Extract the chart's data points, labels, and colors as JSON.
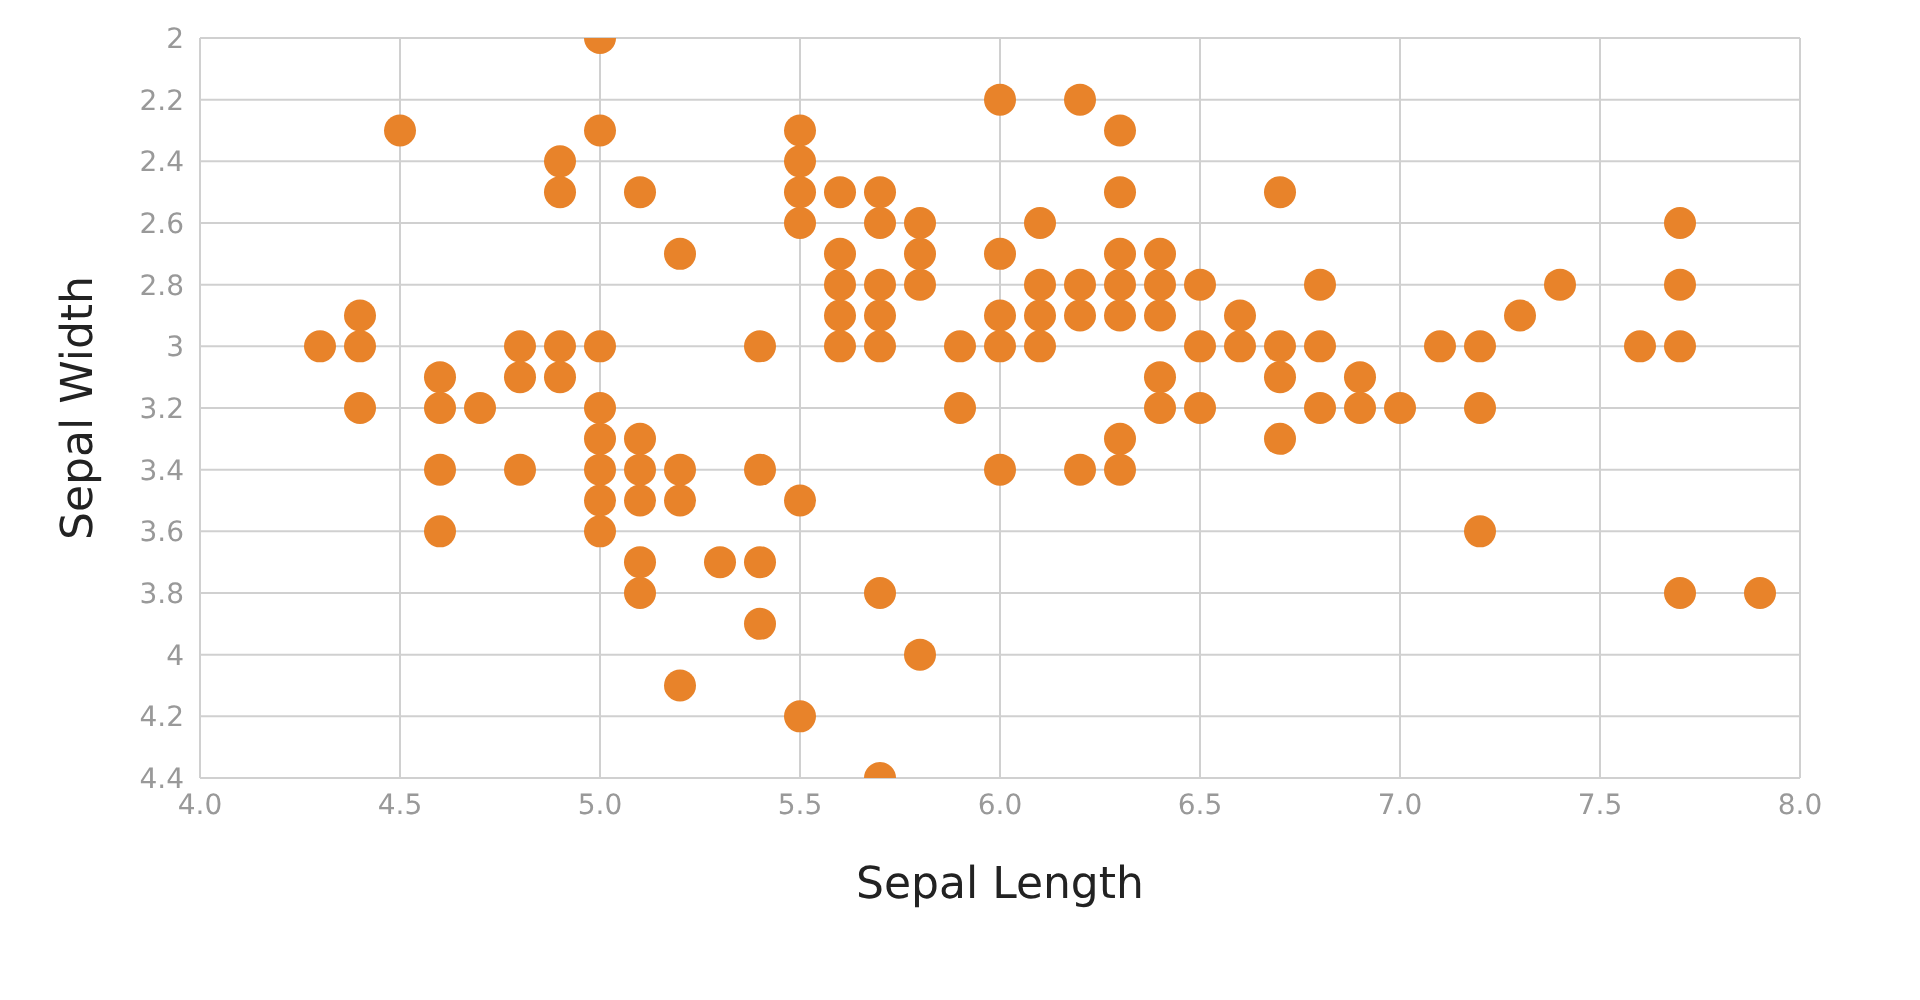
{
  "chart_data": {
    "type": "scatter",
    "xlabel": "Sepal Length",
    "ylabel": "Sepal Width",
    "xlim": [
      4,
      8
    ],
    "xticks": [
      {
        "value": 4,
        "label": "4.0"
      },
      {
        "value": 4.5,
        "label": "4.5"
      },
      {
        "value": 5,
        "label": "5.0"
      },
      {
        "value": 5.5,
        "label": "5.5"
      },
      {
        "value": 6,
        "label": "6.0"
      },
      {
        "value": 6.5,
        "label": "6.5"
      },
      {
        "value": 7,
        "label": "7.0"
      },
      {
        "value": 7.5,
        "label": "7.5"
      },
      {
        "value": 8,
        "label": "8.0"
      }
    ],
    "ylim": [
      4.4,
      2
    ],
    "yticks": [
      2,
      2.2,
      2.4,
      2.6,
      2.8,
      3,
      3.2,
      3.4,
      3.6,
      3.8,
      4,
      4.2,
      4.4
    ],
    "grid": true,
    "marker": "circle",
    "legend": false,
    "series": [
      {
        "color": "#e8832a",
        "x": [
          4.3,
          4.4,
          4.4,
          4.4,
          4.5,
          4.6,
          4.6,
          4.6,
          4.6,
          4.7,
          4.8,
          4.8,
          4.8,
          4.9,
          4.9,
          4.9,
          4.9,
          5.0,
          5.0,
          5.0,
          5.0,
          5.0,
          5.0,
          5.0,
          5.0,
          5.1,
          5.1,
          5.1,
          5.1,
          5.1,
          5.1,
          5.2,
          5.2,
          5.2,
          5.2,
          5.3,
          5.4,
          5.4,
          5.4,
          5.4,
          5.5,
          5.5,
          5.5,
          5.5,
          5.5,
          5.5,
          5.6,
          5.6,
          5.6,
          5.6,
          5.6,
          5.7,
          5.7,
          5.7,
          5.7,
          5.7,
          5.7,
          5.7,
          5.8,
          5.8,
          5.8,
          5.8,
          5.9,
          5.9,
          6.0,
          6.0,
          6.0,
          6.0,
          6.0,
          6.1,
          6.1,
          6.1,
          6.1,
          6.2,
          6.2,
          6.2,
          6.2,
          6.3,
          6.3,
          6.3,
          6.3,
          6.3,
          6.3,
          6.3,
          6.4,
          6.4,
          6.4,
          6.4,
          6.4,
          6.5,
          6.5,
          6.5,
          6.6,
          6.6,
          6.7,
          6.7,
          6.7,
          6.7,
          6.8,
          6.8,
          6.8,
          6.9,
          6.9,
          7.0,
          7.1,
          7.2,
          7.2,
          7.2,
          7.3,
          7.4,
          7.6,
          7.7,
          7.7,
          7.7,
          7.7,
          7.9
        ],
        "values": [
          3.0,
          2.9,
          3.0,
          3.2,
          2.3,
          3.1,
          3.4,
          3.6,
          3.2,
          3.2,
          3.4,
          3.0,
          3.1,
          3.0,
          3.1,
          2.4,
          2.5,
          3.6,
          3.4,
          3.0,
          3.2,
          3.5,
          3.3,
          2.0,
          2.3,
          3.5,
          3.8,
          3.7,
          3.3,
          3.4,
          2.5,
          3.5,
          3.4,
          4.1,
          2.7,
          3.7,
          3.9,
          3.7,
          3.4,
          3.0,
          4.2,
          3.5,
          2.3,
          2.4,
          2.5,
          2.6,
          2.9,
          3.0,
          2.5,
          2.7,
          2.8,
          4.4,
          3.8,
          2.8,
          2.6,
          3.0,
          2.9,
          2.5,
          4.0,
          2.7,
          2.6,
          2.8,
          3.0,
          3.2,
          2.2,
          2.9,
          2.7,
          3.4,
          3.0,
          2.9,
          2.8,
          3.0,
          2.6,
          2.2,
          2.9,
          2.8,
          3.4,
          3.3,
          2.5,
          2.3,
          2.9,
          2.7,
          2.8,
          3.4,
          3.2,
          2.9,
          2.7,
          2.8,
          3.1,
          2.8,
          3.0,
          3.2,
          2.9,
          3.0,
          3.1,
          3.0,
          2.5,
          3.3,
          2.8,
          3.0,
          3.2,
          3.1,
          3.2,
          3.2,
          3.0,
          3.6,
          3.2,
          3.0,
          2.9,
          2.8,
          3.0,
          3.8,
          2.6,
          2.8,
          3.0,
          3.8
        ]
      }
    ]
  }
}
